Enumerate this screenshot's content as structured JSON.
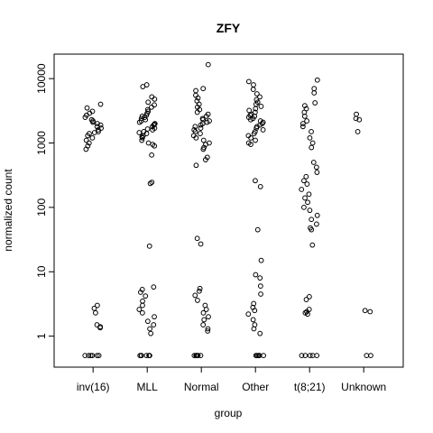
{
  "chart_data": {
    "type": "stripchart",
    "title": "ZFY",
    "x_label": "group",
    "y_label": "normalized count",
    "log_y": true,
    "point_color": "#000000",
    "categories": [
      "inv(16)",
      "MLL",
      "Normal",
      "Other",
      "t(8;21)",
      "Unknown"
    ],
    "ylim": [
      0.33,
      24000
    ],
    "yticks": [
      1,
      10,
      100,
      1000,
      10000
    ],
    "values": [
      [
        4000,
        3500,
        3100,
        2900,
        2700,
        2500,
        2300,
        2200,
        2100,
        2000,
        1900,
        1800,
        1700,
        1600,
        1500,
        1450,
        1400,
        1300,
        1200,
        1100,
        1000,
        900,
        800,
        3.0,
        2.7,
        2.3,
        1.5,
        1.4,
        1.35,
        0.5,
        0.5,
        0.5,
        0.5,
        0.5,
        0.5
      ],
      [
        8000,
        7500,
        5200,
        4800,
        4300,
        3900,
        3600,
        3300,
        3100,
        2900,
        2700,
        2600,
        2500,
        2400,
        2300,
        2200,
        2100,
        2000,
        1950,
        1900,
        1800,
        1700,
        1650,
        1600,
        1500,
        1450,
        1400,
        1300,
        1250,
        1200,
        1100,
        1000,
        950,
        900,
        650,
        245,
        235,
        25,
        5.8,
        5.3,
        4.8,
        4.2,
        3.5,
        3.0,
        2.6,
        2.3,
        2.0,
        1.7,
        1.5,
        1.3,
        1.1,
        0.5,
        0.5,
        0.5,
        0.5,
        0.5,
        0.5,
        0.5
      ],
      [
        16500,
        7000,
        6500,
        5500,
        5000,
        4500,
        4000,
        3600,
        3300,
        3000,
        2800,
        2600,
        2400,
        2300,
        2200,
        2100,
        2000,
        1900,
        1800,
        1700,
        1600,
        1500,
        1400,
        1300,
        1200,
        1100,
        1000,
        950,
        850,
        800,
        600,
        550,
        450,
        33,
        27,
        5.5,
        5.0,
        4.3,
        3.6,
        3.0,
        2.6,
        2.3,
        2.0,
        1.8,
        1.5,
        1.3,
        1.2,
        0.5,
        0.5,
        0.5,
        0.5,
        0.5,
        0.5
      ],
      [
        9000,
        8000,
        6800,
        5800,
        5200,
        4700,
        4300,
        4000,
        3700,
        3400,
        3200,
        3000,
        2800,
        2700,
        2600,
        2500,
        2400,
        2300,
        2200,
        2100,
        2000,
        1900,
        1800,
        1700,
        1600,
        1500,
        1400,
        1300,
        1200,
        1100,
        1000,
        950,
        260,
        210,
        45,
        15,
        9,
        8,
        6,
        4.5,
        3.2,
        2.8,
        2.5,
        2.2,
        1.8,
        1.5,
        1.3,
        1.1,
        0.5,
        0.5,
        0.5,
        0.5,
        0.5,
        0.5
      ],
      [
        9500,
        7000,
        6000,
        4200,
        3800,
        3400,
        3000,
        2600,
        2200,
        2000,
        1800,
        1500,
        1200,
        1000,
        850,
        500,
        420,
        350,
        300,
        260,
        230,
        190,
        160,
        140,
        120,
        100,
        90,
        75,
        65,
        55,
        48,
        45,
        26,
        4.1,
        3.7,
        2.6,
        2.4,
        2.3,
        2.2,
        0.5,
        0.5,
        0.5,
        0.5,
        0.5
      ],
      [
        2800,
        2400,
        2300,
        1500,
        2.5,
        2.4,
        0.5,
        0.5
      ]
    ]
  }
}
